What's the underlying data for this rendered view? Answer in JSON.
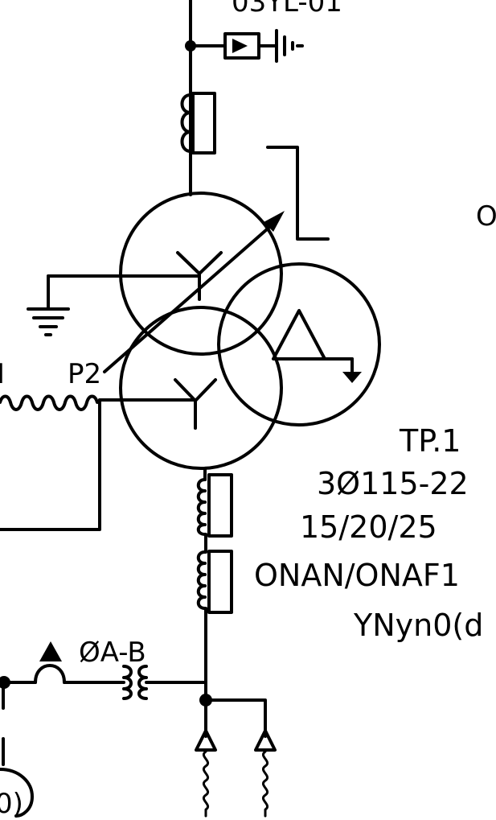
{
  "diagram": {
    "labels": {
      "top_clipped": "03YL-01",
      "right_clipped": "O",
      "ct_left_clipped": "I",
      "ct_p2": "P2",
      "phase": "ØA-B",
      "bottom_left_clipped": "0)"
    },
    "transformer": {
      "name": "TP.1",
      "voltage": "3Ø115-22",
      "rating": "15/20/25",
      "cooling": "ONAN/ONAF1",
      "vector_group": "YNyn0(d"
    },
    "colors": {
      "line": "#000000",
      "background": "#ffffff"
    }
  }
}
